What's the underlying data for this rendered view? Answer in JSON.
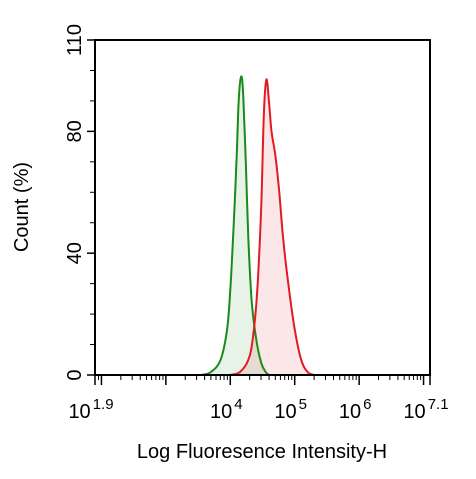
{
  "chart_data": {
    "type": "area",
    "xlabel": "Log Fluoresence Intensity-H",
    "ylabel": "Count  (%)",
    "x_scale": "log10",
    "xlim_exponent": [
      1.9,
      7.1
    ],
    "ylim": [
      0,
      110
    ],
    "y_ticks": [
      {
        "value": 0,
        "label": "0"
      },
      {
        "value": 40,
        "label": "40"
      },
      {
        "value": 80,
        "label": "80"
      },
      {
        "value": 110,
        "label": "110"
      }
    ],
    "x_ticks": [
      {
        "exp": 1.9,
        "base": "10",
        "sup": "1.9"
      },
      {
        "exp": 4,
        "base": "10",
        "sup": "4"
      },
      {
        "exp": 5,
        "base": "10",
        "sup": "5"
      },
      {
        "exp": 6,
        "base": "10",
        "sup": "6"
      },
      {
        "exp": 7.1,
        "base": "10",
        "sup": "7.1"
      }
    ],
    "grid": false,
    "series": [
      {
        "color": "#1a8a1a",
        "fill": "rgba(60,160,60,0.12)",
        "log_x": [
          3.55,
          3.7,
          3.85,
          3.95,
          4.0,
          4.05,
          4.1,
          4.13,
          4.17,
          4.2,
          4.24,
          4.28,
          4.33,
          4.4,
          4.48,
          4.55,
          4.6
        ],
        "y": [
          0,
          1,
          5,
          15,
          28,
          48,
          72,
          90,
          98,
          92,
          70,
          45,
          25,
          12,
          4,
          1,
          0
        ]
      },
      {
        "color": "#e01b24",
        "fill": "rgba(230,90,100,0.15)",
        "log_x": [
          4.0,
          4.15,
          4.28,
          4.35,
          4.42,
          4.48,
          4.52,
          4.56,
          4.6,
          4.64,
          4.7,
          4.76,
          4.82,
          4.9,
          5.0,
          5.1,
          5.2,
          5.3
        ],
        "y": [
          0,
          1,
          5,
          12,
          28,
          55,
          85,
          97,
          90,
          80,
          72,
          60,
          45,
          30,
          15,
          5,
          1,
          0
        ]
      }
    ]
  }
}
